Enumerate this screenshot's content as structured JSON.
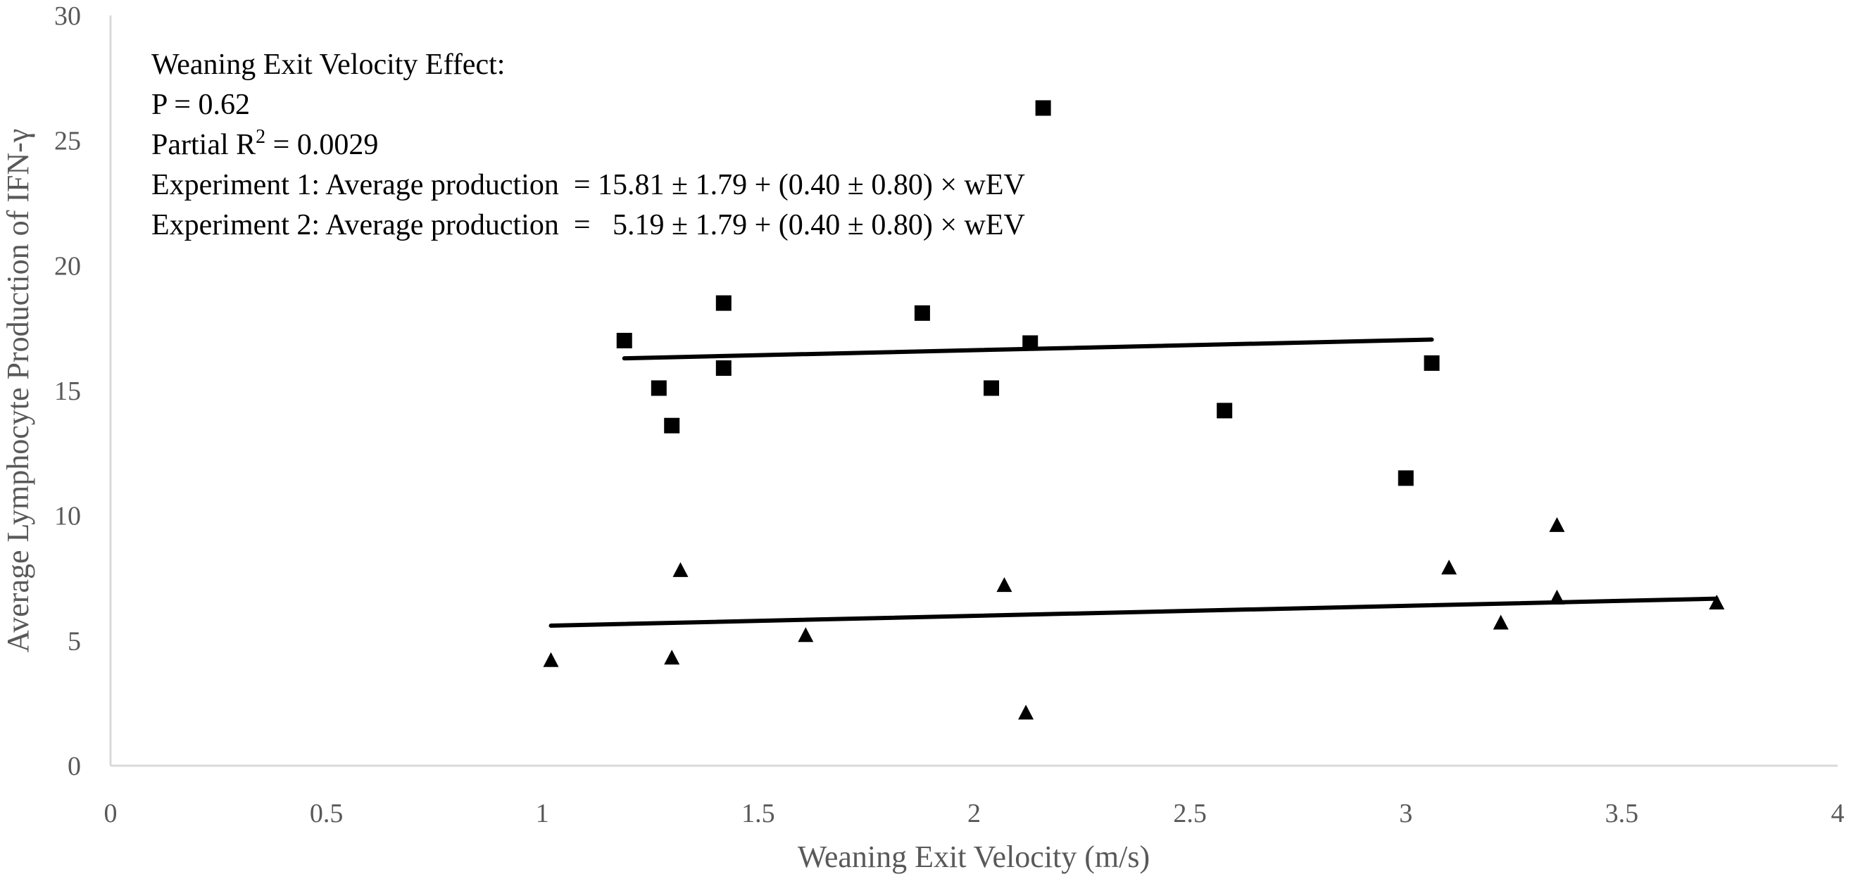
{
  "chart_data": {
    "type": "scatter",
    "title": "",
    "xlabel": "Weaning Exit Velocity (m/s)",
    "ylabel": "Average Lymphocyte Production of IFN-γ",
    "xlim": [
      0,
      4
    ],
    "ylim": [
      0,
      30
    ],
    "x_ticks": [
      "0",
      "0.5",
      "1",
      "1.5",
      "2",
      "2.5",
      "3",
      "3.5",
      "4"
    ],
    "y_ticks": [
      "0",
      "5",
      "10",
      "15",
      "20",
      "25",
      "30"
    ],
    "x_tick_values": [
      0,
      0.5,
      1,
      1.5,
      2,
      2.5,
      3,
      3.5,
      4
    ],
    "y_tick_values": [
      0,
      5,
      10,
      15,
      20,
      25,
      30
    ],
    "grid": false,
    "annotations": {
      "effect_title": "Weaning Exit Velocity Effect:",
      "p_value": "P = 0.62",
      "partial_r2_prefix": "Partial R",
      "partial_r2_sup": "2",
      "partial_r2_suffix": " = 0.0029",
      "exp1_equation": "Experiment 1: Average production  = 15.81 ± 1.79 + (0.40 ± 0.80) × wEV",
      "exp2_equation": "Experiment 2: Average production  =   5.19 ± 1.79 + (0.40 ± 0.80) × wEV"
    },
    "series": [
      {
        "name": "Experiment 1",
        "marker": "square",
        "color": "#000000",
        "points": [
          {
            "x": 1.19,
            "y": 17.0
          },
          {
            "x": 1.27,
            "y": 15.1
          },
          {
            "x": 1.3,
            "y": 13.6
          },
          {
            "x": 1.42,
            "y": 18.5
          },
          {
            "x": 1.42,
            "y": 15.9
          },
          {
            "x": 1.88,
            "y": 18.1
          },
          {
            "x": 2.04,
            "y": 15.1
          },
          {
            "x": 2.13,
            "y": 16.9
          },
          {
            "x": 2.16,
            "y": 26.3
          },
          {
            "x": 2.58,
            "y": 14.2
          },
          {
            "x": 3.0,
            "y": 11.5
          },
          {
            "x": 3.06,
            "y": 16.1
          }
        ],
        "trendline": {
          "x": [
            1.19,
            3.06
          ],
          "y": [
            16.29,
            17.04
          ]
        }
      },
      {
        "name": "Experiment 2",
        "marker": "triangle",
        "color": "#000000",
        "points": [
          {
            "x": 1.02,
            "y": 4.2
          },
          {
            "x": 1.3,
            "y": 4.3
          },
          {
            "x": 1.32,
            "y": 7.8
          },
          {
            "x": 1.61,
            "y": 5.2
          },
          {
            "x": 2.07,
            "y": 7.2
          },
          {
            "x": 2.12,
            "y": 2.1
          },
          {
            "x": 3.1,
            "y": 7.9
          },
          {
            "x": 3.22,
            "y": 5.7
          },
          {
            "x": 3.35,
            "y": 9.6
          },
          {
            "x": 3.35,
            "y": 6.7
          },
          {
            "x": 3.72,
            "y": 6.5
          }
        ],
        "trendline": {
          "x": [
            1.02,
            3.72
          ],
          "y": [
            5.6,
            6.68
          ]
        }
      }
    ]
  }
}
